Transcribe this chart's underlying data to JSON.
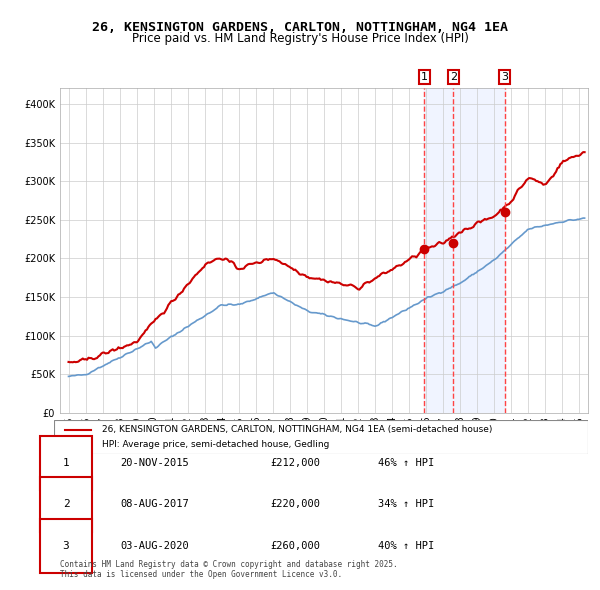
{
  "title1": "26, KENSINGTON GARDENS, CARLTON, NOTTINGHAM, NG4 1EA",
  "title2": "Price paid vs. HM Land Registry's House Price Index (HPI)",
  "legend_line1": "26, KENSINGTON GARDENS, CARLTON, NOTTINGHAM, NG4 1EA (semi-detached house)",
  "legend_line2": "HPI: Average price, semi-detached house, Gedling",
  "sale1_label": "1",
  "sale1_date": "20-NOV-2015",
  "sale1_price": "£212,000",
  "sale1_hpi": "46% ↑ HPI",
  "sale1_year": 2015.9,
  "sale1_value": 212000,
  "sale2_label": "2",
  "sale2_date": "08-AUG-2017",
  "sale2_price": "£220,000",
  "sale2_hpi": "34% ↑ HPI",
  "sale2_year": 2017.6,
  "sale2_value": 220000,
  "sale3_label": "3",
  "sale3_date": "03-AUG-2020",
  "sale3_price": "£260,000",
  "sale3_hpi": "40% ↑ HPI",
  "sale3_year": 2020.6,
  "sale3_value": 260000,
  "hpi_color": "#6699cc",
  "price_color": "#cc0000",
  "bg_color": "#f0f4ff",
  "plot_bg": "#ffffff",
  "grid_color": "#cccccc",
  "vline_color": "#ff4444",
  "footnote": "Contains HM Land Registry data © Crown copyright and database right 2025.\nThis data is licensed under the Open Government Licence v3.0.",
  "ylim": [
    0,
    420000
  ],
  "xlim_start": 1994.5,
  "xlim_end": 2025.5
}
